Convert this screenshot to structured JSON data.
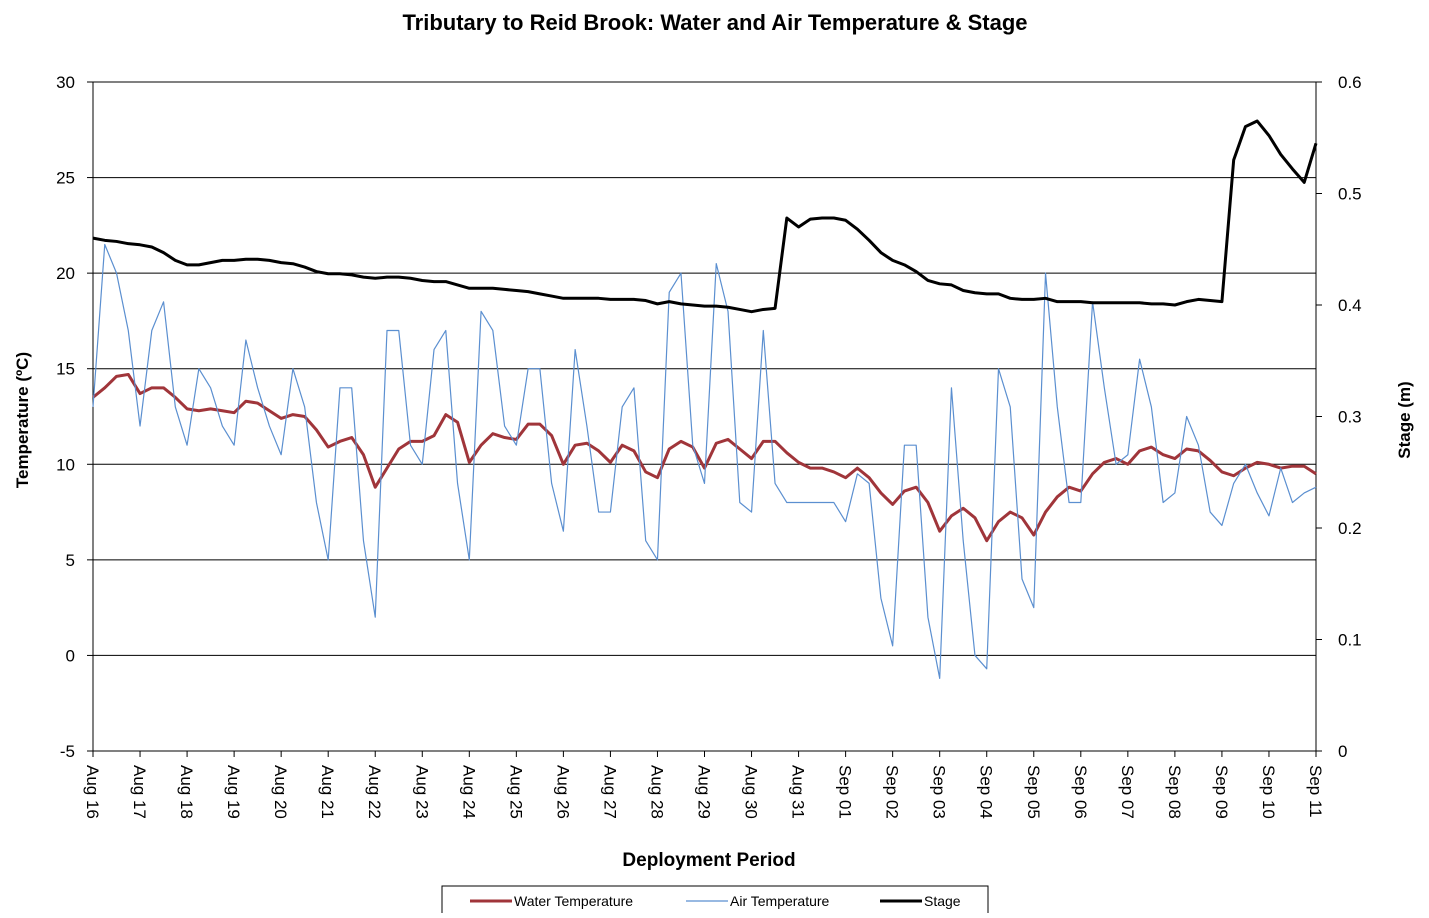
{
  "chart_data": {
    "type": "line",
    "title": "Tributary to Reid Brook: Water and Air  Temperature & Stage",
    "x_label": "Deployment Period",
    "y_label": "Temperature (ºC)",
    "y2_label": "Stage (m)",
    "categories": [
      "Aug 16",
      null,
      null,
      null,
      "Aug 17",
      null,
      null,
      null,
      "Aug 18",
      null,
      null,
      null,
      "Aug 19",
      null,
      null,
      null,
      "Aug 20",
      null,
      null,
      null,
      "Aug 21",
      null,
      null,
      null,
      "Aug 22",
      null,
      null,
      null,
      "Aug 23",
      null,
      null,
      null,
      "Aug 24",
      null,
      null,
      null,
      "Aug 25",
      null,
      null,
      null,
      "Aug 26",
      null,
      null,
      null,
      "Aug 27",
      null,
      null,
      null,
      "Aug 28",
      null,
      null,
      null,
      "Aug 29",
      null,
      null,
      null,
      "Aug 30",
      null,
      null,
      null,
      "Aug 31",
      null,
      null,
      null,
      "Sep 01",
      null,
      null,
      null,
      "Sep 02",
      null,
      null,
      null,
      "Sep 03",
      null,
      null,
      null,
      "Sep 04",
      null,
      null,
      null,
      "Sep 05",
      null,
      null,
      null,
      "Sep 06",
      null,
      null,
      null,
      "Sep 07",
      null,
      null,
      null,
      "Sep 08",
      null,
      null,
      null,
      "Sep 09",
      null,
      null,
      null,
      "Sep 10",
      null,
      null,
      null,
      "Sep 11"
    ],
    "series": [
      {
        "name": "Water Temperature",
        "color": "#a0353a",
        "width": 3,
        "axis": "y",
        "values": [
          13.5,
          14,
          14.6,
          14.7,
          13.7,
          14,
          14,
          13.5,
          12.9,
          12.8,
          12.9,
          12.8,
          12.7,
          13.3,
          13.2,
          12.8,
          12.4,
          12.6,
          12.5,
          11.8,
          10.9,
          11.2,
          11.4,
          10.5,
          8.8,
          9.8,
          10.8,
          11.2,
          11.2,
          11.5,
          12.6,
          12.2,
          10.1,
          11.0,
          11.6,
          11.4,
          11.3,
          12.1,
          12.1,
          11.5,
          10.0,
          11.0,
          11.1,
          10.7,
          10.1,
          11.0,
          10.7,
          9.6,
          9.3,
          10.8,
          11.2,
          10.9,
          9.8,
          11.1,
          11.3,
          10.8,
          10.3,
          11.2,
          11.2,
          10.6,
          10.1,
          9.8,
          9.8,
          9.6,
          9.3,
          9.8,
          9.3,
          8.5,
          7.9,
          8.6,
          8.8,
          8.0,
          6.5,
          7.3,
          7.7,
          7.2,
          6.0,
          7.0,
          7.5,
          7.2,
          6.3,
          7.5,
          8.3,
          8.8,
          8.6,
          9.5,
          10.1,
          10.3,
          10.0,
          10.7,
          10.9,
          10.5,
          10.3,
          10.8,
          10.7,
          10.2,
          9.6,
          9.4,
          9.8,
          10.1,
          10.0,
          9.8,
          9.9,
          9.9,
          9.5
        ]
      },
      {
        "name": "Air Temperature",
        "color": "#5b8fd0",
        "width": 1.2,
        "axis": "y",
        "values": [
          13,
          21.5,
          20,
          17,
          12,
          17,
          18.5,
          13,
          11,
          15,
          14,
          12,
          11,
          16.5,
          14,
          12,
          10.5,
          15,
          13,
          8,
          5,
          14,
          14,
          6,
          2,
          17,
          17,
          11,
          10,
          16,
          17,
          9,
          5,
          18,
          17,
          12,
          11,
          15,
          15,
          9,
          6.5,
          16,
          12,
          7.5,
          7.5,
          13,
          14,
          6,
          5,
          19,
          20,
          11,
          9,
          20.5,
          18,
          8,
          7.5,
          17,
          9,
          8,
          8,
          8,
          8,
          8,
          7,
          9.5,
          9,
          3,
          0.5,
          11,
          11,
          2,
          -1.2,
          14,
          6,
          0,
          -0.7,
          15,
          13,
          4,
          2.5,
          20,
          13,
          8,
          8,
          18.5,
          14,
          10,
          10.5,
          15.5,
          13,
          8,
          8.5,
          12.5,
          11,
          7.5,
          6.8,
          9,
          10,
          8.5,
          7.3,
          9.8,
          8,
          8.5,
          8.8
        ]
      },
      {
        "name": "Stage",
        "color": "#000000",
        "width": 3,
        "axis": "y2",
        "values": [
          0.46,
          0.458,
          0.457,
          0.455,
          0.454,
          0.452,
          0.447,
          0.44,
          0.436,
          0.436,
          0.438,
          0.44,
          0.44,
          0.441,
          0.441,
          0.44,
          0.438,
          0.437,
          0.434,
          0.43,
          0.428,
          0.428,
          0.427,
          0.425,
          0.424,
          0.425,
          0.425,
          0.424,
          0.422,
          0.421,
          0.421,
          0.418,
          0.415,
          0.415,
          0.415,
          0.414,
          0.413,
          0.412,
          0.41,
          0.408,
          0.406,
          0.406,
          0.406,
          0.406,
          0.405,
          0.405,
          0.405,
          0.404,
          0.401,
          0.403,
          0.401,
          0.4,
          0.399,
          0.399,
          0.398,
          0.396,
          0.394,
          0.396,
          0.397,
          0.478,
          0.47,
          0.477,
          0.478,
          0.478,
          0.476,
          0.468,
          0.458,
          0.447,
          0.44,
          0.436,
          0.43,
          0.422,
          0.419,
          0.418,
          0.413,
          0.411,
          0.41,
          0.41,
          0.406,
          0.405,
          0.405,
          0.406,
          0.403,
          0.403,
          0.403,
          0.402,
          0.402,
          0.402,
          0.402,
          0.402,
          0.401,
          0.401,
          0.4,
          0.403,
          0.405,
          0.404,
          0.403,
          0.53,
          0.56,
          0.565,
          0.552,
          0.535,
          0.522,
          0.51,
          0.545
        ]
      }
    ],
    "ylim": [
      -5,
      30
    ],
    "yticks": [
      -5,
      0,
      5,
      10,
      15,
      20,
      25,
      30
    ],
    "y2lim": [
      0,
      0.6
    ],
    "y2ticks": [
      0,
      0.1,
      0.2,
      0.3,
      0.4,
      0.5,
      0.6
    ],
    "grid": true,
    "legend": "bottom"
  }
}
